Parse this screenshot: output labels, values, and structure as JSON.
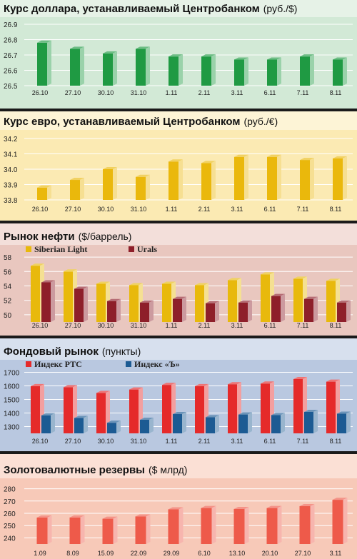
{
  "colors": {
    "green_bg": "#d2e9d6",
    "green_head": "#e6f2e7",
    "green_bar": "#1f9a43",
    "euro_bg": "#fbeab3",
    "euro_head": "#fdf4d6",
    "euro_bar": "#eab80c",
    "oil_bg": "#e9c7bf",
    "oil_head": "#f3dfda",
    "oil_light": "#e8b90c",
    "oil_urals": "#8e1f2a",
    "stock_bg": "#b9c8e0",
    "stock_head": "#d7e0ee",
    "stock_rts": "#e52a2a",
    "stock_kommersant": "#1c5b93",
    "res_bg": "#f7c9b8",
    "res_head": "#fbe0d5",
    "res_bar": "#ee5a4a",
    "separator": "#1a1a1a"
  },
  "chart_data": [
    {
      "type": "bar",
      "title": "Курс доллара, устанавливаемый Центробанком",
      "unit": "(руб./$)",
      "categories": [
        "26.10",
        "27.10",
        "30.10",
        "31.10",
        "1.11",
        "2.11",
        "3.11",
        "6.11",
        "7.11",
        "8.11"
      ],
      "series": [
        {
          "values": [
            26.78,
            26.74,
            26.71,
            26.74,
            26.69,
            26.69,
            26.67,
            26.67,
            26.69,
            26.67
          ]
        }
      ],
      "ylim": [
        26.5,
        26.9
      ],
      "yticks": [
        "26.5",
        "26.6",
        "26.7",
        "26.8",
        "26.9"
      ],
      "grid": true
    },
    {
      "type": "bar",
      "title": "Курс евро, устанавливаемый Центробанком",
      "unit": "(руб./€)",
      "categories": [
        "26.10",
        "27.10",
        "30.10",
        "31.10",
        "1.11",
        "2.11",
        "3.11",
        "6.11",
        "7.11",
        "8.11"
      ],
      "series": [
        {
          "values": [
            33.88,
            33.93,
            34.0,
            33.95,
            34.05,
            34.04,
            34.08,
            34.08,
            34.06,
            34.07
          ]
        }
      ],
      "ylim": [
        33.8,
        34.2
      ],
      "yticks": [
        "33.8",
        "33.9",
        "34.0",
        "34.1",
        "34.2"
      ],
      "grid": true
    },
    {
      "type": "bar",
      "title": "Рынок нефти",
      "unit": "($/баррель)",
      "categories": [
        "26.10",
        "27.10",
        "30.10",
        "31.10",
        "1.11",
        "2.11",
        "3.11",
        "6.11",
        "7.11",
        "8.11"
      ],
      "series": [
        {
          "name": "Siberian Light",
          "values": [
            56.8,
            56.0,
            54.3,
            54.1,
            54.3,
            54.1,
            54.8,
            55.6,
            55.0,
            54.7
          ]
        },
        {
          "name": "Urals",
          "values": [
            54.5,
            53.6,
            51.9,
            51.7,
            52.2,
            51.6,
            51.7,
            52.6,
            52.2,
            51.7
          ]
        }
      ],
      "ylim": [
        49,
        59
      ],
      "yticks": [
        "50",
        "52",
        "54",
        "56",
        "58"
      ],
      "legend": "top-left",
      "grid": true
    },
    {
      "type": "bar",
      "title": "Фондовый рынок",
      "unit": "(пункты)",
      "categories": [
        "26.10",
        "27.10",
        "30.10",
        "31.10",
        "1.11",
        "2.11",
        "3.11",
        "6.11",
        "7.11",
        "8.11"
      ],
      "series": [
        {
          "name": "Индекс РТС",
          "values": [
            1598,
            1590,
            1548,
            1573,
            1607,
            1598,
            1612,
            1617,
            1650,
            1631
          ]
        },
        {
          "name": "Индекс «Ъ»",
          "values": [
            1383,
            1363,
            1328,
            1350,
            1392,
            1369,
            1389,
            1385,
            1408,
            1395
          ]
        }
      ],
      "ylim": [
        1250,
        1750
      ],
      "yticks": [
        "1300",
        "1400",
        "1500",
        "1600",
        "1700"
      ],
      "legend": "top-left",
      "grid": true
    },
    {
      "type": "bar",
      "title": "Золотовалютные резервы",
      "unit": "($ млрд)",
      "categories": [
        "1.09",
        "8.09",
        "15.09",
        "22.09",
        "29.09",
        "6.10",
        "13.10",
        "20.10",
        "27.10",
        "3.11"
      ],
      "series": [
        {
          "values": [
            256.5,
            256.6,
            255.6,
            257.4,
            263.2,
            264.3,
            263.5,
            264.3,
            265.8,
            271.0
          ]
        }
      ],
      "ylim": [
        235,
        285
      ],
      "yticks": [
        "240",
        "250",
        "260",
        "270",
        "280"
      ],
      "grid": true
    }
  ]
}
